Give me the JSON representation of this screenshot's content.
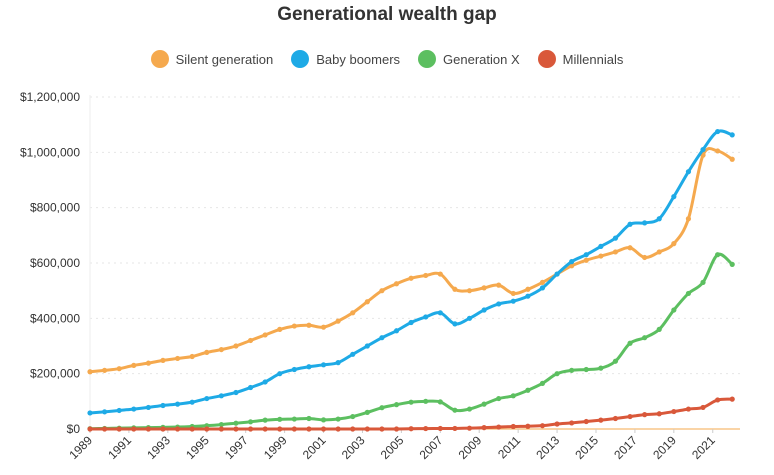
{
  "chart_data": {
    "type": "line",
    "title": "Generational wealth gap",
    "xlabel": "",
    "ylabel": "",
    "ylim": [
      0,
      1200000
    ],
    "yticks": [
      "$0",
      "$200,000",
      "$400,000",
      "$600,000",
      "$800,000",
      "$1,000,000",
      "$1,200,000"
    ],
    "xticks": [
      "1989",
      "1991",
      "1993",
      "1995",
      "1997",
      "1999",
      "2001",
      "2003",
      "2005",
      "2007",
      "2009",
      "2011",
      "2013",
      "2015",
      "2017",
      "2019",
      "2021"
    ],
    "x": [
      1989.0,
      1989.75,
      1990.5,
      1991.25,
      1992.0,
      1992.75,
      1993.5,
      1994.25,
      1995.0,
      1995.75,
      1996.5,
      1997.25,
      1998.0,
      1998.75,
      1999.5,
      2000.25,
      2001.0,
      2001.75,
      2002.5,
      2003.25,
      2004.0,
      2004.75,
      2005.5,
      2006.25,
      2007.0,
      2007.75,
      2008.5,
      2009.25,
      2010.0,
      2010.75,
      2011.5,
      2012.25,
      2013.0,
      2013.75,
      2014.5,
      2015.25,
      2016.0,
      2016.75,
      2017.5,
      2018.25,
      2019.0,
      2019.75,
      2020.5,
      2021.25,
      2022.0
    ],
    "grid": true,
    "legend_position": "top-center",
    "series": [
      {
        "name": "Silent generation",
        "color": "#f5a94e",
        "values": [
          207000,
          212000,
          218000,
          230000,
          238000,
          248000,
          255000,
          262000,
          277000,
          287000,
          300000,
          320000,
          340000,
          360000,
          372000,
          375000,
          368000,
          390000,
          420000,
          460000,
          500000,
          525000,
          545000,
          555000,
          560000,
          505000,
          500000,
          510000,
          520000,
          490000,
          505000,
          530000,
          560000,
          590000,
          610000,
          625000,
          640000,
          655000,
          620000,
          640000,
          670000,
          760000,
          990000,
          1005000,
          975000
        ]
      },
      {
        "name": "Baby boomers",
        "color": "#1eaae6",
        "values": [
          58000,
          62000,
          67000,
          72000,
          78000,
          85000,
          90000,
          97000,
          110000,
          120000,
          132000,
          150000,
          170000,
          200000,
          215000,
          225000,
          232000,
          240000,
          270000,
          300000,
          330000,
          355000,
          385000,
          405000,
          420000,
          380000,
          400000,
          430000,
          452000,
          462000,
          480000,
          510000,
          560000,
          605000,
          630000,
          660000,
          690000,
          740000,
          745000,
          760000,
          840000,
          930000,
          1010000,
          1075000,
          1063000
        ]
      },
      {
        "name": "Generation X",
        "color": "#5cbf60",
        "values": [
          1000,
          2000,
          3000,
          4000,
          5000,
          6000,
          7000,
          9000,
          12000,
          16000,
          21000,
          26000,
          32000,
          35000,
          36000,
          38000,
          33000,
          36000,
          45000,
          60000,
          77000,
          88000,
          97000,
          100000,
          98000,
          68000,
          72000,
          90000,
          110000,
          120000,
          140000,
          165000,
          200000,
          212000,
          215000,
          220000,
          245000,
          310000,
          330000,
          360000,
          430000,
          490000,
          530000,
          630000,
          595000
        ]
      },
      {
        "name": "Millennials",
        "color": "#d9583a",
        "values": [
          0,
          0,
          0,
          0,
          0,
          0,
          0,
          0,
          0,
          0,
          0,
          0,
          0,
          0,
          0,
          0,
          0,
          0,
          0,
          0,
          0,
          0,
          1000,
          1500,
          2000,
          2000,
          3000,
          5000,
          7000,
          9000,
          10000,
          12000,
          18000,
          22000,
          27000,
          32000,
          38000,
          45000,
          52000,
          55000,
          63000,
          72000,
          78000,
          105000,
          108000
        ]
      }
    ]
  }
}
